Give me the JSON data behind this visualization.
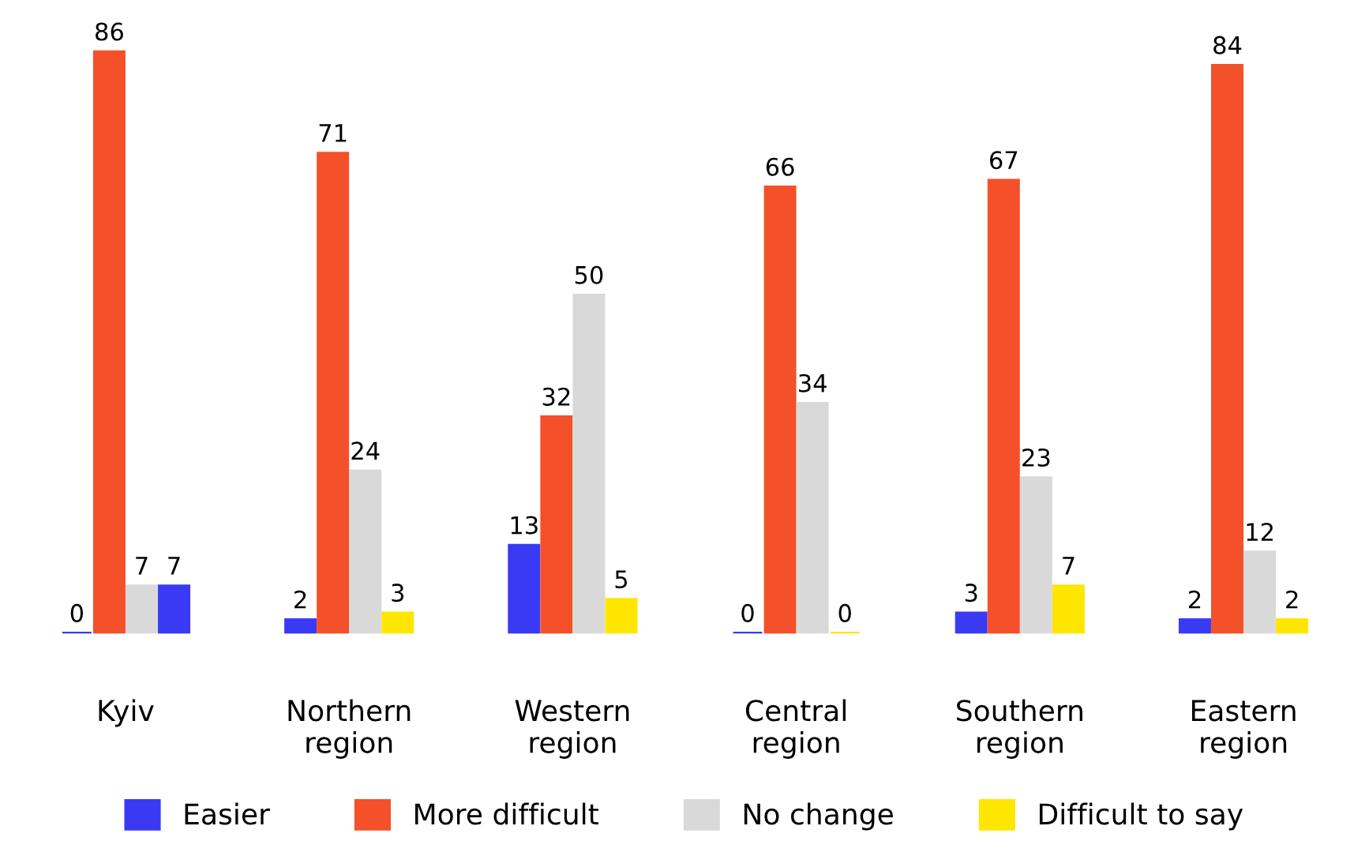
{
  "chart_data": {
    "type": "bar",
    "categories": [
      "Kyiv",
      "Northern\nregion",
      "Western\nregion",
      "Central\nregion",
      "Southern\nregion",
      "Eastern\nregion"
    ],
    "series": [
      {
        "name": "Easier",
        "color": "#3a3af5",
        "values": [
          0,
          2,
          13,
          0,
          3,
          2
        ]
      },
      {
        "name": "More difficult",
        "color": "#f4502a",
        "values": [
          86,
          71,
          32,
          66,
          67,
          84
        ]
      },
      {
        "name": "No change",
        "color": "#d9d9d9",
        "values": [
          7,
          24,
          50,
          34,
          23,
          12
        ]
      },
      {
        "name": "Difficult to say",
        "color": "#ffe600",
        "colors": [
          "#3a3af5",
          "#ffe600",
          "#ffe600",
          "#ffe600",
          "#ffe600",
          "#ffe600"
        ],
        "values": [
          7,
          3,
          5,
          0,
          7,
          2
        ]
      }
    ],
    "data_labels": true,
    "legend": "bottom",
    "grid": false,
    "tick_labels": "x"
  }
}
